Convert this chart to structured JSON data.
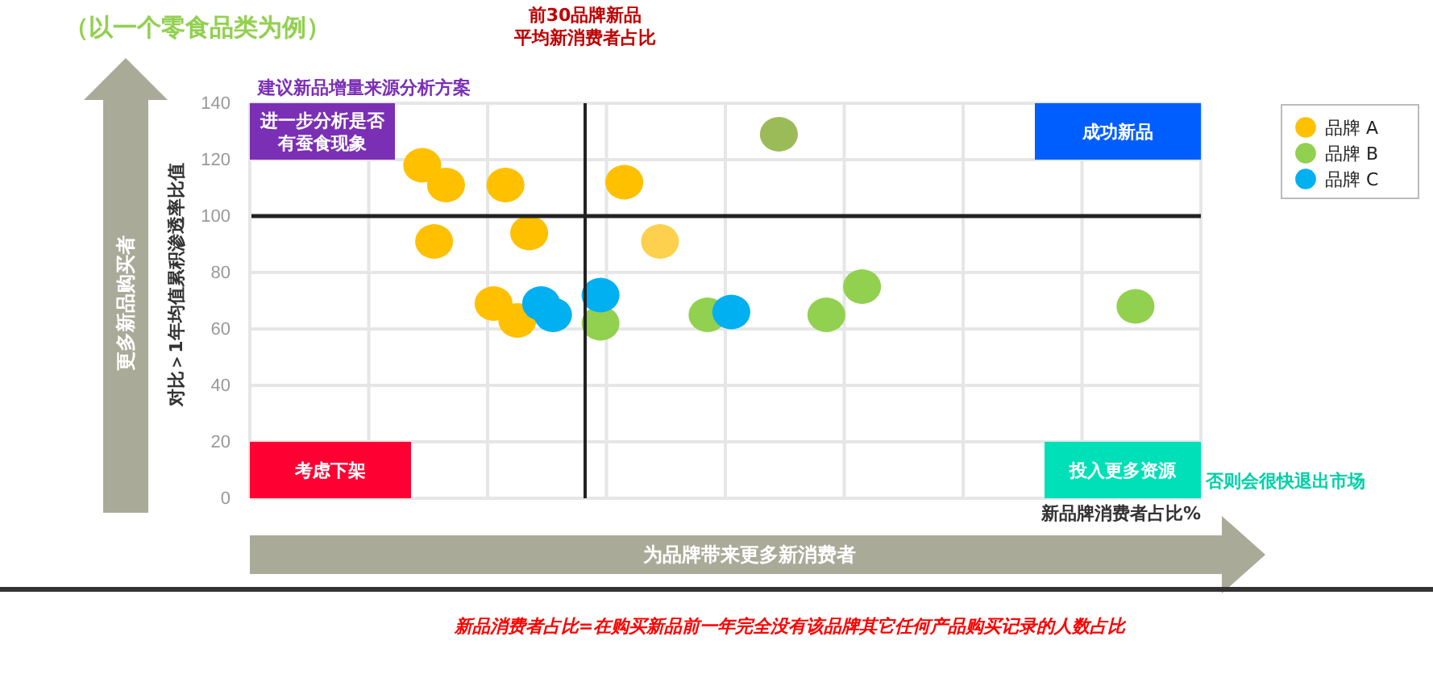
{
  "chart_data": {
    "type": "scatter",
    "title": "（以一个零食品类为例）",
    "xlabel": "新品牌消费者占比%",
    "ylabel": "对比＞1年均值累积渗透率比值",
    "categories": [
      null,
      null,
      null,
      null,
      null,
      null,
      null,
      null,
      null,
      null,
      null,
      null,
      null,
      null,
      null,
      null,
      null,
      null,
      null,
      null,
      null,
      null,
      null,
      null,
      null,
      null,
      null,
      null,
      null,
      null,
      null,
      null,
      null,
      null,
      null,
      null,
      null,
      null,
      null,
      null,
      null,
      null,
      null,
      null,
      null,
      null,
      null,
      null,
      null,
      null,
      null,
      null,
      null,
      null,
      null,
      null,
      null,
      null,
      null,
      null,
      null,
      null,
      null,
      null,
      null,
      null,
      null,
      null,
      null,
      null,
      null,
      null,
      null,
      null,
      null,
      null,
      null,
      null,
      null,
      null
    ],
    "ylim": [
      0,
      140
    ],
    "yticks": [
      0,
      20,
      40,
      60,
      80,
      100,
      120,
      140
    ],
    "grid": true,
    "legend": "top right",
    "marker": "circle",
    "tick_labels": "y",
    "series": [
      {
        "name": "品牌 A",
        "color": "#ffc000",
        "colors": [
          null,
          null,
          null,
          null,
          null,
          null,
          null,
          null,
          null,
          null,
          null,
          null,
          null,
          null,
          "#ffc000",
          "#ffc000",
          "#ffc000",
          null,
          null,
          null,
          "#ffc000",
          "#ffc000",
          "#ffc000",
          "#ffc000",
          null,
          null,
          null,
          null,
          null,
          null,
          null,
          "#ffc000",
          null,
          null,
          "#fdd14d",
          null,
          null,
          null,
          null,
          null,
          null,
          null,
          null,
          null,
          null,
          null,
          null,
          null,
          null,
          null,
          null,
          null,
          null,
          null,
          null,
          null,
          null,
          null,
          null,
          null,
          null,
          null,
          null,
          null,
          null,
          null,
          null,
          null,
          null,
          null,
          null,
          null,
          null,
          null,
          null,
          null,
          null,
          null,
          null,
          null
        ],
        "values": [
          null,
          null,
          null,
          null,
          null,
          null,
          null,
          null,
          null,
          null,
          null,
          null,
          null,
          null,
          118,
          91,
          111,
          null,
          null,
          null,
          69,
          111,
          63,
          94,
          null,
          null,
          null,
          null,
          null,
          null,
          null,
          112,
          null,
          null,
          91,
          null,
          null,
          null,
          null,
          null,
          null,
          null,
          null,
          null,
          null,
          null,
          null,
          null,
          null,
          null,
          null,
          null,
          null,
          null,
          null,
          null,
          null,
          null,
          null,
          null,
          null,
          null,
          null,
          null,
          null,
          null,
          null,
          null,
          null,
          null,
          null,
          null,
          null,
          null,
          null,
          null,
          null,
          null,
          null,
          null
        ]
      },
      {
        "name": "品牌 B",
        "color": "#92d050",
        "colors": [
          null,
          null,
          null,
          null,
          null,
          null,
          null,
          null,
          null,
          null,
          null,
          null,
          null,
          null,
          null,
          null,
          null,
          null,
          null,
          null,
          null,
          null,
          null,
          null,
          null,
          null,
          null,
          null,
          null,
          "#92d050",
          null,
          null,
          null,
          null,
          null,
          null,
          null,
          null,
          "#92d050",
          null,
          null,
          null,
          null,
          null,
          "#9bbb59",
          null,
          null,
          null,
          "#92d050",
          null,
          null,
          "#92d050",
          null,
          null,
          null,
          null,
          null,
          null,
          null,
          null,
          null,
          null,
          null,
          null,
          null,
          null,
          null,
          null,
          null,
          null,
          null,
          null,
          null,
          null,
          "#92d050",
          null,
          null,
          null,
          null,
          null
        ],
        "values": [
          null,
          null,
          null,
          null,
          null,
          null,
          null,
          null,
          null,
          null,
          null,
          null,
          null,
          null,
          null,
          null,
          null,
          null,
          null,
          null,
          null,
          null,
          null,
          null,
          null,
          null,
          null,
          null,
          null,
          62,
          null,
          null,
          null,
          null,
          null,
          null,
          null,
          null,
          65,
          null,
          null,
          null,
          null,
          null,
          129,
          null,
          null,
          null,
          65,
          null,
          null,
          75,
          null,
          null,
          null,
          null,
          null,
          null,
          null,
          null,
          null,
          null,
          null,
          null,
          null,
          null,
          null,
          null,
          null,
          null,
          null,
          null,
          null,
          null,
          68,
          null,
          null,
          null,
          null,
          null
        ]
      },
      {
        "name": "品牌 C",
        "color": "#00b0f0",
        "values": [
          null,
          null,
          null,
          null,
          null,
          null,
          null,
          null,
          null,
          null,
          null,
          null,
          null,
          null,
          null,
          null,
          null,
          null,
          null,
          null,
          null,
          null,
          null,
          null,
          69,
          65,
          null,
          null,
          null,
          72,
          null,
          null,
          null,
          null,
          null,
          null,
          null,
          null,
          null,
          null,
          66,
          null,
          null,
          null,
          null,
          null,
          null,
          null,
          null,
          null,
          null,
          null,
          null,
          null,
          null,
          null,
          null,
          null,
          null,
          null,
          null,
          null,
          null,
          null,
          null,
          null,
          null,
          null,
          null,
          null,
          null,
          null,
          null,
          null,
          null,
          null,
          null,
          null,
          null,
          null
        ]
      }
    ],
    "ref_lines": [
      {
        "axis": "y",
        "value": 100,
        "color": "#222222"
      }
    ],
    "annotations": [
      "建议新品增量来源分析方案",
      "进一步分析是否有蚕食现象",
      "成功新品",
      "考虑下架",
      "投入更多资源",
      "否则会很快退出市场",
      "更多新品购买者",
      "为品牌带来更多新消费者",
      "新品消费者占比=在购买新品前一年完全没有该品牌其它任何产品购买记录的人数占比",
      "前30品牌新品平均新消费者占比"
    ]
  }
}
